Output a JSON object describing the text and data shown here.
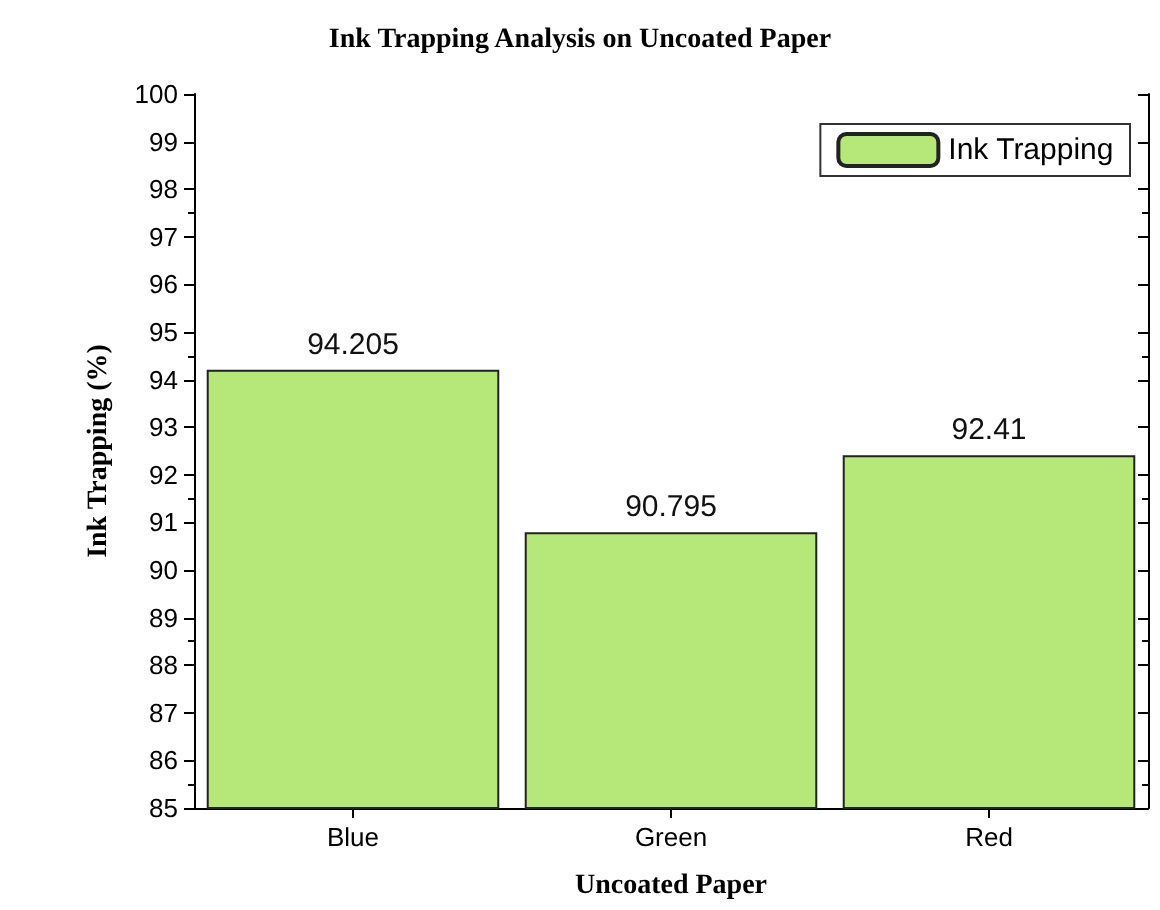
{
  "chart_data": {
    "type": "bar",
    "title": "Ink Trapping Analysis on Uncoated Paper",
    "xlabel": "Uncoated Paper",
    "ylabel": "Ink Trapping (%)",
    "categories": [
      "Blue",
      "Green",
      "Red"
    ],
    "series": [
      {
        "name": "Ink Trapping",
        "color": "#b5e878",
        "values": [
          94.205,
          90.795,
          92.41
        ]
      }
    ],
    "ylim": [
      85,
      100
    ],
    "yticks": [
      85,
      86,
      87,
      88,
      89,
      90,
      91,
      92,
      93,
      94,
      95,
      96,
      97,
      98,
      99,
      100
    ],
    "data_labels": true,
    "legend": "top right",
    "grid": false
  }
}
